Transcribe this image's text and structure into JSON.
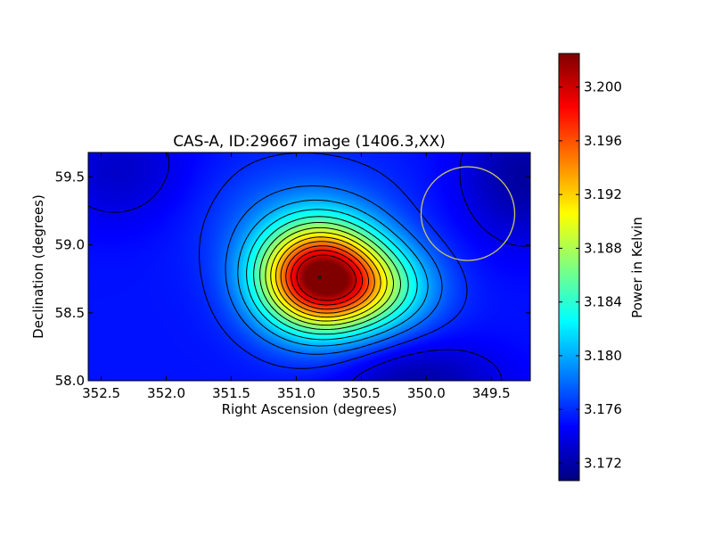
{
  "chart_data": {
    "type": "heatmap",
    "title": "CAS-A, ID:29667 image (1406.3,XX)",
    "xlabel": "Right Ascension (degrees)",
    "ylabel": "Declination (degrees)",
    "xlim": [
      352.6,
      349.2
    ],
    "ylim": [
      58.0,
      59.68
    ],
    "x_ticks": [
      352.5,
      352.0,
      351.5,
      351.0,
      350.5,
      350.0,
      349.5
    ],
    "x_tick_labels": [
      "352.5",
      "352.0",
      "351.5",
      "351.0",
      "350.5",
      "350.0",
      "349.5"
    ],
    "y_ticks": [
      58.0,
      58.5,
      59.0,
      59.5
    ],
    "y_tick_labels": [
      "58.0",
      "58.5",
      "59.0",
      "59.5"
    ],
    "colormap": "jet",
    "colorbar": {
      "label": "Power in Kelvin",
      "range": [
        3.1707,
        3.2025
      ],
      "ticks": [
        3.172,
        3.176,
        3.18,
        3.184,
        3.188,
        3.192,
        3.196,
        3.2
      ],
      "tick_labels": [
        "3.172",
        "3.176",
        "3.180",
        "3.184",
        "3.188",
        "3.192",
        "3.196",
        "3.200"
      ]
    },
    "peak": {
      "ra": 350.82,
      "dec": 58.76,
      "value": 3.2025
    },
    "contour_levels": [
      3.174,
      3.176,
      3.178,
      3.18,
      3.182,
      3.184,
      3.186,
      3.188,
      3.19,
      3.192,
      3.194,
      3.196,
      3.198,
      3.2
    ],
    "beam_circle": {
      "ra": 349.68,
      "dec": 59.23,
      "radius_deg": 0.36,
      "color": "#c8c864"
    },
    "grid": false
  }
}
